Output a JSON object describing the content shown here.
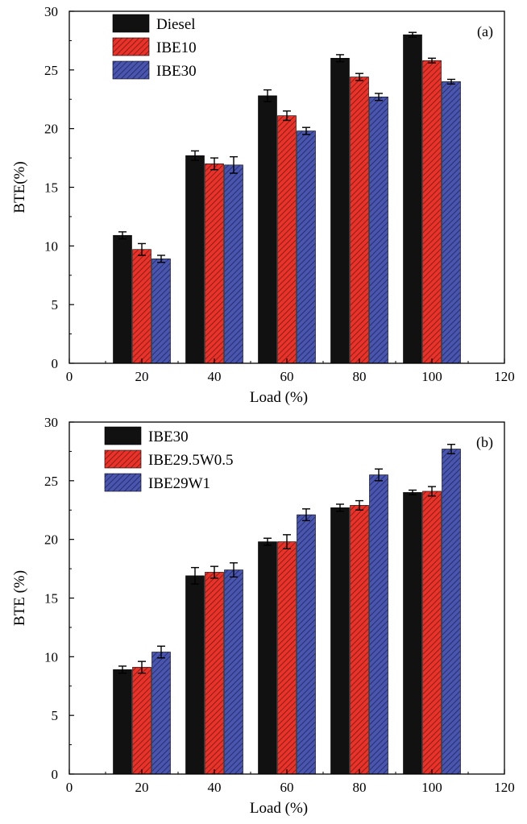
{
  "figure": {
    "series_colors": [
      "#111111",
      "#e8332a",
      "#4a56ad"
    ],
    "series_patterns": [
      "solid",
      "hatch",
      "hatch"
    ]
  },
  "chart_data": [
    {
      "type": "bar",
      "panel_label": "(a)",
      "xlabel": "Load (%)",
      "ylabel": "BTE(%)",
      "x": [
        20,
        40,
        60,
        80,
        100
      ],
      "xlim": [
        0,
        120
      ],
      "ylim": [
        0,
        30
      ],
      "xticks": [
        "0",
        "20",
        "40",
        "60",
        "80",
        "100",
        "120"
      ],
      "yticks": [
        "0",
        "5",
        "10",
        "15",
        "20",
        "25",
        "30"
      ],
      "legend_position": "top-left",
      "series": [
        {
          "name": "Diesel",
          "values": [
            10.9,
            17.7,
            22.8,
            26.0,
            28.0
          ],
          "errors": [
            0.3,
            0.4,
            0.5,
            0.3,
            0.2
          ]
        },
        {
          "name": "IBE10",
          "values": [
            9.7,
            17.0,
            21.1,
            24.4,
            25.8
          ],
          "errors": [
            0.5,
            0.5,
            0.4,
            0.3,
            0.2
          ]
        },
        {
          "name": "IBE30",
          "values": [
            8.9,
            16.9,
            19.8,
            22.7,
            24.0
          ],
          "errors": [
            0.3,
            0.7,
            0.3,
            0.3,
            0.2
          ]
        }
      ]
    },
    {
      "type": "bar",
      "panel_label": "(b)",
      "xlabel": "Load (%)",
      "ylabel": "BTE (%)",
      "x": [
        20,
        40,
        60,
        80,
        100
      ],
      "xlim": [
        0,
        120
      ],
      "ylim": [
        0,
        30
      ],
      "xticks": [
        "0",
        "20",
        "40",
        "60",
        "80",
        "100",
        "120"
      ],
      "yticks": [
        "0",
        "5",
        "10",
        "15",
        "20",
        "25",
        "30"
      ],
      "legend_position": "top-left",
      "series": [
        {
          "name": "IBE30",
          "values": [
            8.9,
            16.9,
            19.8,
            22.7,
            24.0
          ],
          "errors": [
            0.3,
            0.7,
            0.3,
            0.3,
            0.2
          ]
        },
        {
          "name": "IBE29.5W0.5",
          "values": [
            9.1,
            17.2,
            19.8,
            22.9,
            24.1
          ],
          "errors": [
            0.5,
            0.5,
            0.6,
            0.4,
            0.4
          ]
        },
        {
          "name": "IBE29W1",
          "values": [
            10.4,
            17.4,
            22.1,
            25.5,
            27.7
          ],
          "errors": [
            0.5,
            0.6,
            0.5,
            0.5,
            0.4
          ]
        }
      ]
    }
  ]
}
